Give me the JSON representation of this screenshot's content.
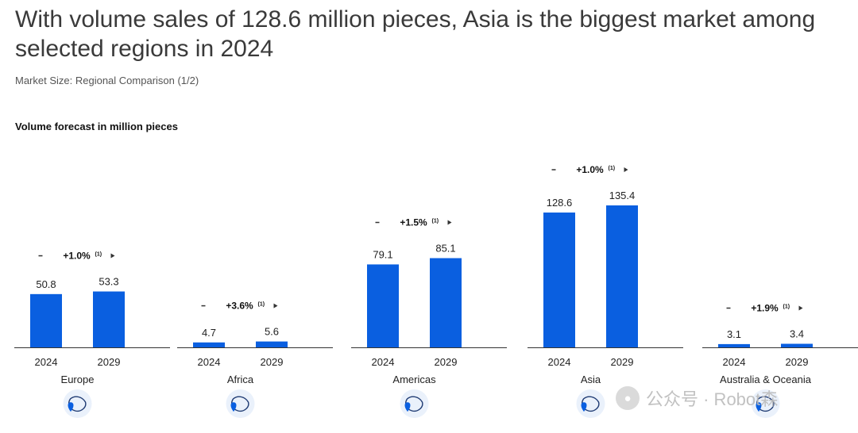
{
  "title": "With volume sales of 128.6 million pieces, Asia is the biggest market among selected regions in 2024",
  "subtitle": "Market Size: Regional Comparison (1/2)",
  "watermark": {
    "text": "公众号 · Robot森",
    "icon": "wechat-icon"
  },
  "colors": {
    "bar": "#0a5fe0",
    "text": "#222222"
  },
  "chart_data": {
    "type": "bar",
    "title": "Volume forecast in million pieces",
    "categories": [
      "2024",
      "2029"
    ],
    "groups": [
      {
        "region": "Europe",
        "values": [
          50.8,
          53.3
        ],
        "cagr": "+1.0%",
        "footnote": "(1)",
        "icon": "europe-map-icon"
      },
      {
        "region": "Africa",
        "values": [
          4.7,
          5.6
        ],
        "cagr": "+3.6%",
        "footnote": "(1)",
        "icon": "africa-map-icon"
      },
      {
        "region": "Americas",
        "values": [
          79.1,
          85.1
        ],
        "cagr": "+1.5%",
        "footnote": "(1)",
        "icon": "americas-map-icon"
      },
      {
        "region": "Asia",
        "values": [
          128.6,
          135.4
        ],
        "cagr": "+1.0%",
        "footnote": "(1)",
        "icon": "asia-map-icon"
      },
      {
        "region": "Australia & Oceania",
        "values": [
          3.1,
          3.4
        ],
        "cagr": "+1.9%",
        "footnote": "(1)",
        "icon": "oceania-map-icon"
      }
    ],
    "ylim": [
      0,
      135.4
    ],
    "grid": false,
    "legend": "none"
  }
}
